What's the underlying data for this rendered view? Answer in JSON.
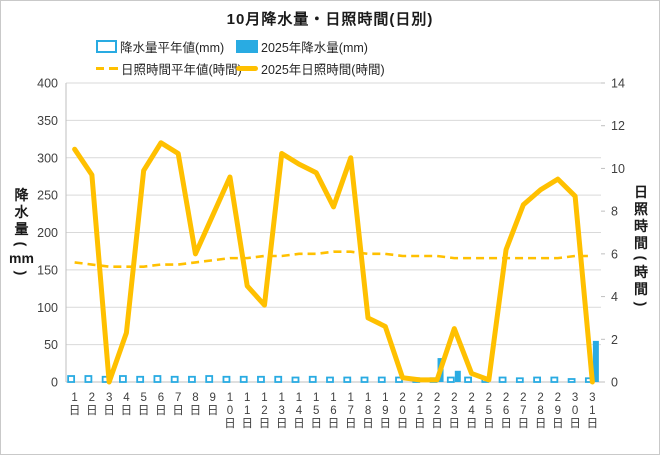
{
  "title": "10月降水量・日照時間(日別)",
  "axes": {
    "left": {
      "title_chars": [
        "降",
        "水",
        "量",
        "(",
        "mm",
        ")"
      ],
      "ticks": [
        0,
        50,
        100,
        150,
        200,
        250,
        300,
        350,
        400
      ],
      "max": 400
    },
    "right": {
      "title_chars": [
        "日",
        "照",
        "時",
        "間",
        "(",
        "時",
        "間",
        ")"
      ],
      "ticks": [
        0,
        2,
        4,
        6,
        8,
        10,
        12,
        14
      ],
      "max": 14
    }
  },
  "colors": {
    "precip": "#29ABE2",
    "sunshine": "#FFC000",
    "grid": "#d9d9d9",
    "axis_line": "#bfbfbf",
    "tick_text": "#404040"
  },
  "chart_data": {
    "type": "combo bar+line",
    "title": "10月降水量・日照時間(日別)",
    "categories": [
      "1日",
      "2日",
      "3日",
      "4日",
      "5日",
      "6日",
      "7日",
      "8日",
      "9日",
      "10日",
      "11日",
      "12日",
      "13日",
      "14日",
      "15日",
      "16日",
      "17日",
      "18日",
      "19日",
      "20日",
      "21日",
      "22日",
      "23日",
      "24日",
      "25日",
      "26日",
      "27日",
      "28日",
      "29日",
      "30日",
      "31日"
    ],
    "ylim_left": [
      0,
      400
    ],
    "ylim_right": [
      0,
      14
    ],
    "ylabel_left": "降水量(mm)",
    "ylabel_right": "日照時間(時間)",
    "grid": true,
    "legend_position": "top",
    "series": [
      {
        "name": "降水量平年値(mm)",
        "type": "bar",
        "style": "outlined",
        "axis": "left",
        "values": [
          8,
          8,
          7,
          8,
          7,
          8,
          7,
          7,
          8,
          7,
          7,
          7,
          7,
          6,
          7,
          6,
          6,
          6,
          6,
          6,
          5,
          5,
          6,
          6,
          5,
          6,
          5,
          6,
          6,
          4,
          5
        ]
      },
      {
        "name": "2025年降水量(mm)",
        "type": "bar",
        "style": "solid",
        "axis": "left",
        "values": [
          0,
          0,
          0,
          0,
          0,
          0,
          0,
          0,
          0,
          0,
          0,
          0,
          0,
          0,
          0,
          0,
          0,
          0,
          0,
          0,
          0,
          32,
          15,
          0,
          0,
          0,
          0,
          0,
          0,
          0,
          55
        ]
      },
      {
        "name": "日照時間平年値(時間)",
        "type": "line",
        "style": "dashed",
        "axis": "right",
        "values": [
          5.6,
          5.5,
          5.4,
          5.4,
          5.4,
          5.5,
          5.5,
          5.6,
          5.7,
          5.8,
          5.8,
          5.9,
          5.9,
          6.0,
          6.0,
          6.1,
          6.1,
          6.0,
          6.0,
          5.9,
          5.9,
          5.9,
          5.8,
          5.8,
          5.8,
          5.8,
          5.8,
          5.8,
          5.8,
          5.9,
          5.9
        ]
      },
      {
        "name": "2025年日照時間(時間)",
        "type": "line",
        "style": "solid",
        "axis": "right",
        "values": [
          10.9,
          9.7,
          0,
          2.3,
          9.9,
          11.2,
          10.7,
          6.0,
          7.8,
          9.6,
          4.5,
          3.6,
          10.7,
          10.2,
          9.8,
          8.2,
          10.5,
          3.0,
          2.6,
          0.2,
          0.1,
          0.1,
          2.5,
          0.4,
          0.1,
          6.2,
          8.3,
          9.0,
          9.5,
          8.7,
          0
        ]
      }
    ]
  }
}
